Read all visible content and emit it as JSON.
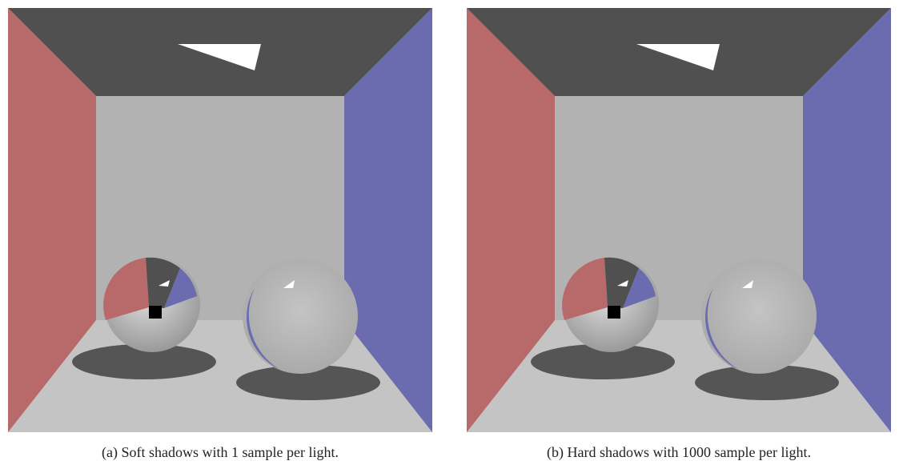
{
  "figure": {
    "captions": [
      "(a) Soft shadows with 1 sample per light.",
      "(b) Hard shadows with 1000 sample per light."
    ]
  }
}
